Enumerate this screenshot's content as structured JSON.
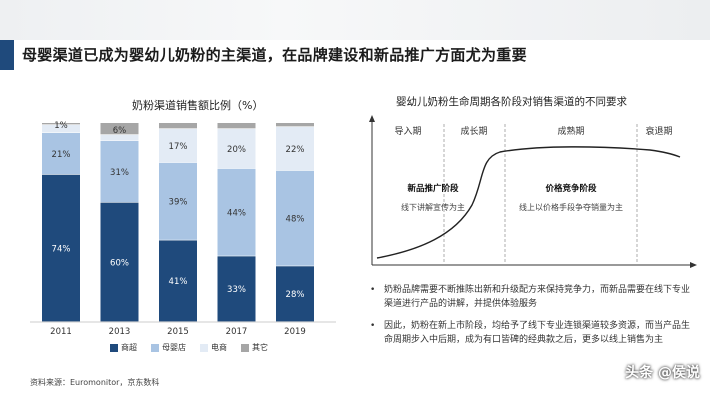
{
  "slide": {
    "title": "母婴渠道已成为婴幼儿奶粉的主渠道，在品牌建设和新品推广方面尤为重要",
    "source": "资料来源：Euromonitor，京东数科",
    "watermark": "头条 @侯说"
  },
  "chart_data": {
    "type": "bar",
    "stacked": true,
    "title": "奶粉渠道销售额比例（%）",
    "categories": [
      "2011",
      "2013",
      "2015",
      "2017",
      "2019"
    ],
    "series": [
      {
        "name": "商超",
        "color": "#1f4a7c",
        "values": [
          74,
          60,
          41,
          33,
          28
        ]
      },
      {
        "name": "母婴店",
        "color": "#a9c4e3",
        "values": [
          21,
          31,
          39,
          44,
          48
        ]
      },
      {
        "name": "电商",
        "color": "#e3ebf5",
        "values": [
          4,
          3,
          17,
          20,
          22
        ]
      },
      {
        "name": "其它",
        "color": "#a6a6a6",
        "values": [
          1,
          6,
          3,
          3,
          2
        ]
      }
    ],
    "data_labels": {
      "商超": [
        "74%",
        "60%",
        "41%",
        "33%",
        "28%"
      ],
      "母婴店": [
        "21%",
        "31%",
        "39%",
        "44%",
        "48%"
      ],
      "电商": [
        "",
        "",
        "17%",
        "20%",
        "22%"
      ],
      "其它": [
        "1%",
        "6%",
        "",
        "",
        ""
      ]
    },
    "ylim": [
      0,
      100
    ]
  },
  "diagram": {
    "title": "婴幼儿奶粉生命周期各阶段对销售渠道的不同要求",
    "stages": [
      "导入期",
      "成长期",
      "成熟期",
      "衰退期"
    ],
    "phase1": {
      "title": "新品推广阶段",
      "desc": "线下讲解宣传为主"
    },
    "phase2": {
      "title": "价格竞争阶段",
      "desc": "线上以价格手段争夺销量为主"
    }
  },
  "bullets": [
    "奶粉品牌需要不断推陈出新和升级配方来保持竞争力，而新品需要在线下专业渠道进行产品的讲解，并提供体验服务",
    "因此，奶粉在新上市阶段，均给予了线下专业连锁渠道较多资源，而当产品生命周期步入中后期，成为有口皆碑的经典款之后，更多以线上销售为主"
  ]
}
